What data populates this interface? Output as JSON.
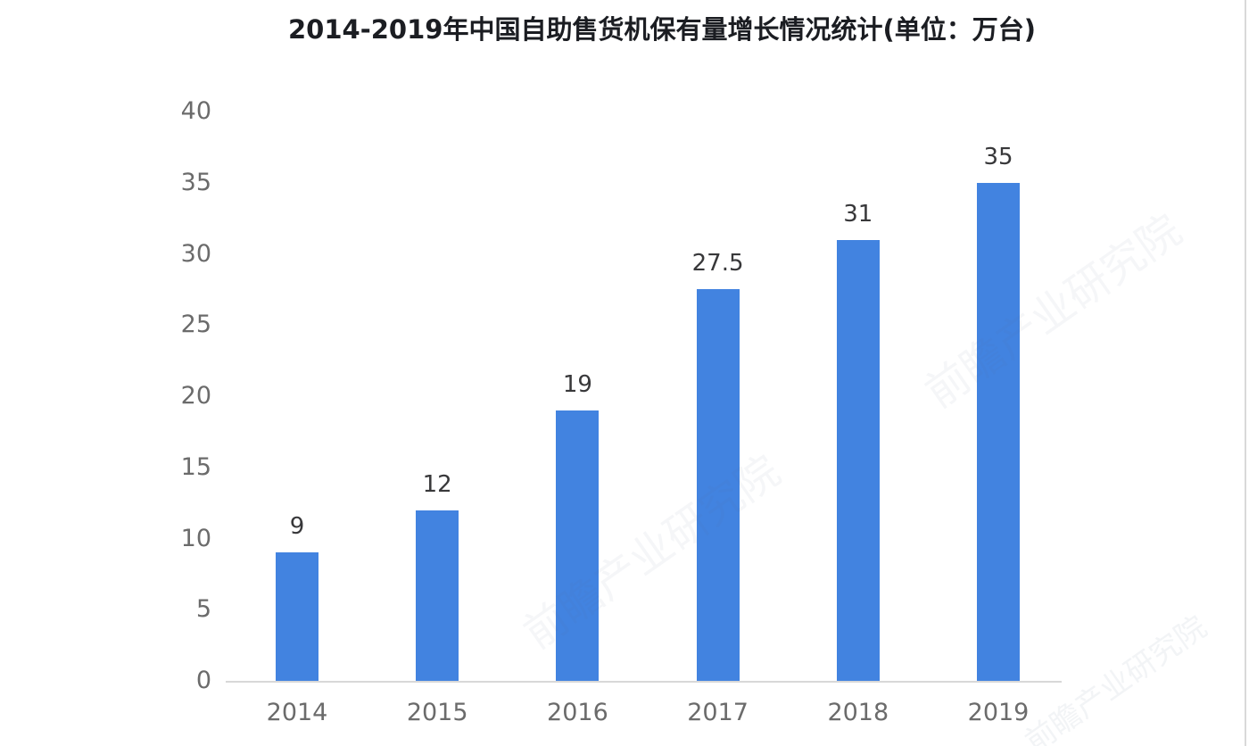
{
  "chart_data": {
    "type": "bar",
    "title": "2014-2019年中国自助售货机保有量增长情况统计(单位：万台)",
    "categories": [
      "2014",
      "2015",
      "2016",
      "2017",
      "2018",
      "2019"
    ],
    "values": [
      9,
      12,
      19,
      27.5,
      31,
      35
    ],
    "value_labels": [
      "9",
      "12",
      "19",
      "27.5",
      "31",
      "35"
    ],
    "xlabel": "",
    "ylabel": "",
    "unit": "万台",
    "ylim": [
      0,
      40
    ],
    "ytick_step": 5,
    "yticks": [
      0,
      5,
      10,
      15,
      20,
      25,
      30,
      35,
      40
    ],
    "grid": false,
    "legend_position": "none",
    "bar_color": "#4283e0",
    "axis_line_color": "#d8d8d8",
    "tick_label_color": "#6b6b6b",
    "value_label_color": "#38383a",
    "title_color": "#1b1d22"
  },
  "watermark": {
    "text": "前瞻产业研究院"
  }
}
